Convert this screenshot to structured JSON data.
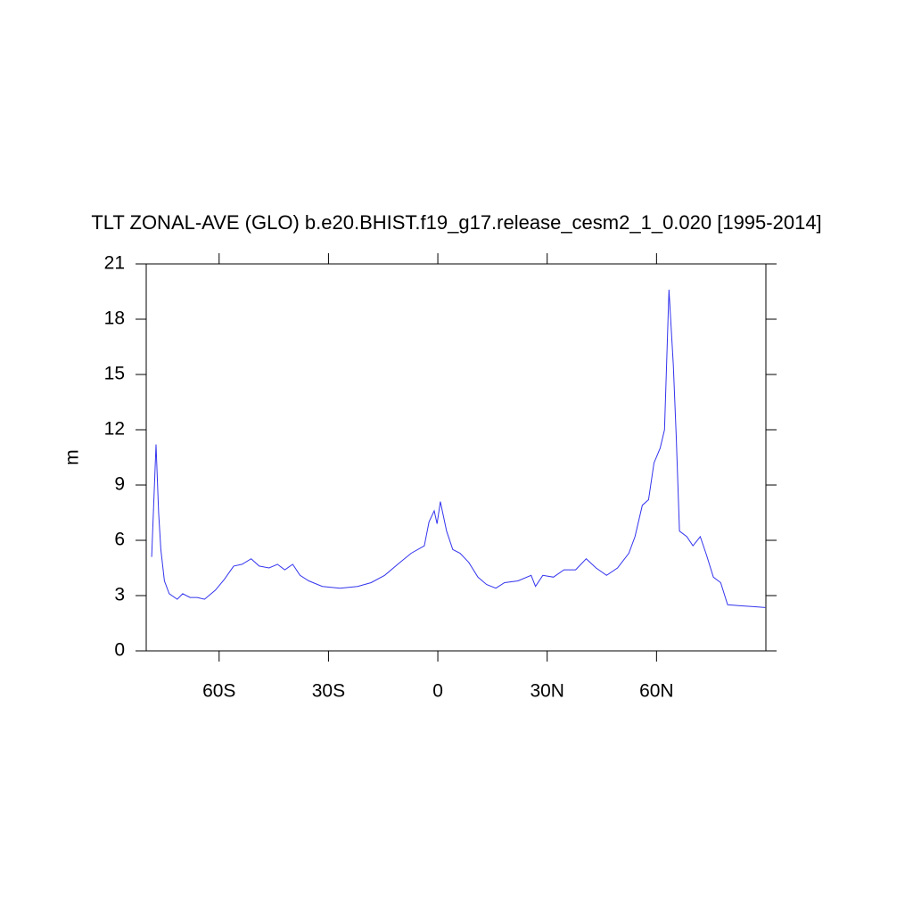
{
  "chart_data": {
    "type": "line",
    "title": "TLT ZONAL-AVE (GLO) b.e20.BHIST.f19_g17.release_cesm2_1_0.020 [1995-2014]",
    "ylabel": "m",
    "x": [
      -78.5,
      -77.3,
      -76.6,
      -76,
      -75,
      -73.7,
      -71.5,
      -70,
      -68,
      -66,
      -64,
      -61,
      -58.5,
      -56,
      -53.7,
      -51.2,
      -49,
      -46.3,
      -44,
      -42,
      -39.8,
      -37.8,
      -35.4,
      -31.7,
      -26.8,
      -22,
      -18.3,
      -14.6,
      -11,
      -7.3,
      -3.7,
      -2.4,
      -1,
      -0.2,
      0.7,
      2.4,
      4.1,
      6.1,
      8.5,
      11,
      13.4,
      15.9,
      18.3,
      22,
      25.6,
      26.8,
      28.8,
      31.7,
      34.6,
      37.8,
      40.7,
      43.4,
      46.3,
      49.3,
      52.4,
      54.1,
      56.1,
      57.8,
      59.3,
      61,
      62.2,
      63.4,
      64.6,
      65.4,
      66.3,
      68.3,
      70,
      72,
      73.7,
      75.6,
      77.6,
      79.5,
      82.9,
      86.6,
      89.8
    ],
    "series": [
      {
        "color": "#3333ee",
        "values": [
          5.1,
          11.2,
          7.5,
          5.5,
          3.8,
          3.1,
          2.8,
          3.1,
          2.9,
          2.9,
          2.8,
          3.3,
          3.9,
          4.6,
          4.7,
          5.0,
          4.6,
          4.5,
          4.7,
          4.4,
          4.7,
          4.1,
          3.8,
          3.5,
          3.4,
          3.5,
          3.7,
          4.1,
          4.7,
          5.3,
          5.7,
          7.0,
          7.6,
          6.9,
          8.1,
          6.5,
          5.5,
          5.3,
          4.8,
          4.0,
          3.6,
          3.4,
          3.7,
          3.8,
          4.1,
          3.5,
          4.1,
          4.0,
          4.4,
          4.4,
          5.0,
          4.5,
          4.1,
          4.5,
          5.3,
          6.2,
          7.9,
          8.2,
          10.2,
          11.0,
          12.0,
          19.6,
          15.5,
          11.7,
          6.5,
          6.2,
          5.7,
          6.2,
          5.2,
          4.0,
          3.7,
          2.5,
          2.45,
          2.4,
          2.35
        ]
      }
    ],
    "xlim": [
      -80,
      90
    ],
    "xticks": [
      {
        "value": -60,
        "label": "60S"
      },
      {
        "value": -30,
        "label": "30S"
      },
      0,
      {
        "value": 30,
        "label": "30N"
      },
      {
        "value": 60,
        "label": "60N"
      }
    ],
    "ylim": [
      0,
      21
    ],
    "yticks": [
      0,
      3,
      6,
      9,
      12,
      15,
      18,
      21
    ]
  }
}
